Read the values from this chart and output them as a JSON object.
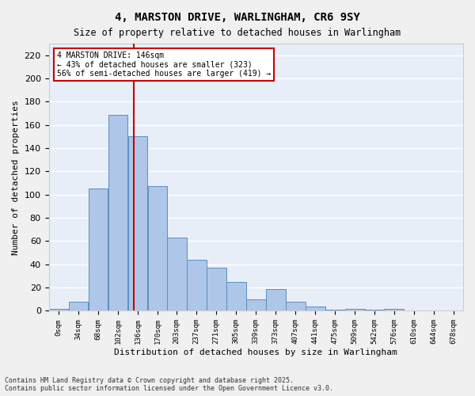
{
  "title1": "4, MARSTON DRIVE, WARLINGHAM, CR6 9SY",
  "title2": "Size of property relative to detached houses in Warlingham",
  "xlabel": "Distribution of detached houses by size in Warlingham",
  "ylabel": "Number of detached properties",
  "bar_values": [
    2,
    8,
    105,
    169,
    150,
    107,
    63,
    44,
    37,
    25,
    10,
    19,
    8,
    4,
    1,
    2,
    1,
    2,
    0,
    0
  ],
  "bin_edges": [
    0,
    34,
    68,
    102,
    136,
    170,
    203,
    237,
    271,
    305,
    339,
    373,
    407,
    441,
    475,
    509,
    542,
    576,
    610,
    644,
    678
  ],
  "x_labels": [
    "0sqm",
    "34sqm",
    "68sqm",
    "102sqm",
    "136sqm",
    "170sqm",
    "203sqm",
    "237sqm",
    "271sqm",
    "305sqm",
    "339sqm",
    "373sqm",
    "407sqm",
    "441sqm",
    "475sqm",
    "509sqm",
    "542sqm",
    "576sqm",
    "610sqm",
    "644sqm",
    "678sqm"
  ],
  "bar_color": "#aec6e8",
  "bar_edge_color": "#5a8fc0",
  "vline_x": 146,
  "vline_color": "#cc0000",
  "annotation_title": "4 MARSTON DRIVE: 146sqm",
  "annotation_line1": "← 43% of detached houses are smaller (323)",
  "annotation_line2": "56% of semi-detached houses are larger (419) →",
  "annotation_box_color": "#cc0000",
  "ylim": [
    0,
    230
  ],
  "yticks": [
    0,
    20,
    40,
    60,
    80,
    100,
    120,
    140,
    160,
    180,
    200,
    220
  ],
  "background_color": "#e8eef8",
  "grid_color": "#ffffff",
  "footnote": "Contains HM Land Registry data © Crown copyright and database right 2025.\nContains public sector information licensed under the Open Government Licence v3.0."
}
